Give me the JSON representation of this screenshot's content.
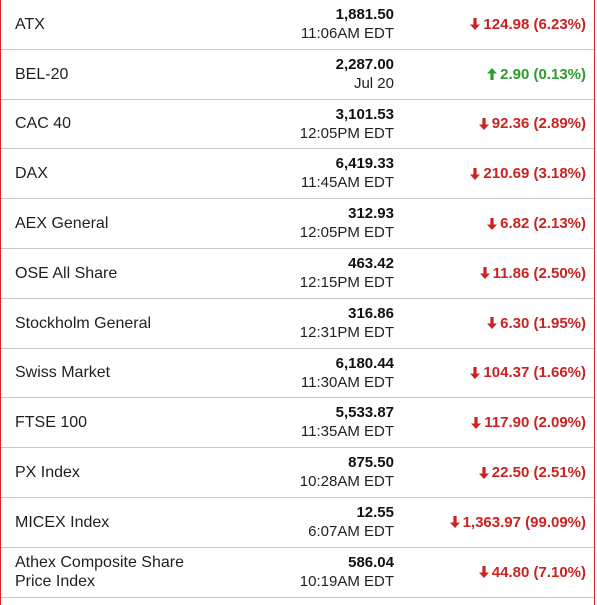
{
  "colors": {
    "down": "#cc2222",
    "up": "#2a9d2a",
    "border": "#d9222a"
  },
  "rows": [
    {
      "name": "ATX",
      "price": "1,881.50",
      "time": "11:06AM EDT",
      "dir": "down",
      "change": "124.98 (6.23%)"
    },
    {
      "name": "BEL-20",
      "price": "2,287.00",
      "time": "Jul 20",
      "dir": "up",
      "change": "2.90 (0.13%)"
    },
    {
      "name": "CAC 40",
      "price": "3,101.53",
      "time": "12:05PM EDT",
      "dir": "down",
      "change": "92.36 (2.89%)"
    },
    {
      "name": "DAX",
      "price": "6,419.33",
      "time": "11:45AM EDT",
      "dir": "down",
      "change": "210.69 (3.18%)"
    },
    {
      "name": "AEX General",
      "price": "312.93",
      "time": "12:05PM EDT",
      "dir": "down",
      "change": "6.82 (2.13%)"
    },
    {
      "name": "OSE All Share",
      "price": "463.42",
      "time": "12:15PM EDT",
      "dir": "down",
      "change": "11.86 (2.50%)"
    },
    {
      "name": "Stockholm General",
      "price": "316.86",
      "time": "12:31PM EDT",
      "dir": "down",
      "change": "6.30 (1.95%)"
    },
    {
      "name": "Swiss Market",
      "price": "6,180.44",
      "time": "11:30AM EDT",
      "dir": "down",
      "change": "104.37 (1.66%)"
    },
    {
      "name": "FTSE 100",
      "price": "5,533.87",
      "time": "11:35AM EDT",
      "dir": "down",
      "change": "117.90 (2.09%)"
    },
    {
      "name": "PX Index",
      "price": "875.50",
      "time": "10:28AM EDT",
      "dir": "down",
      "change": "22.50 (2.51%)"
    },
    {
      "name": "MICEX Index",
      "price": "12.55",
      "time": "6:07AM EDT",
      "dir": "down",
      "change": "1,363.97 (99.09%)"
    },
    {
      "name": "Athex Composite Share Price Index",
      "price": "586.04",
      "time": "10:19AM EDT",
      "dir": "down",
      "change": "44.80 (7.10%)"
    }
  ]
}
